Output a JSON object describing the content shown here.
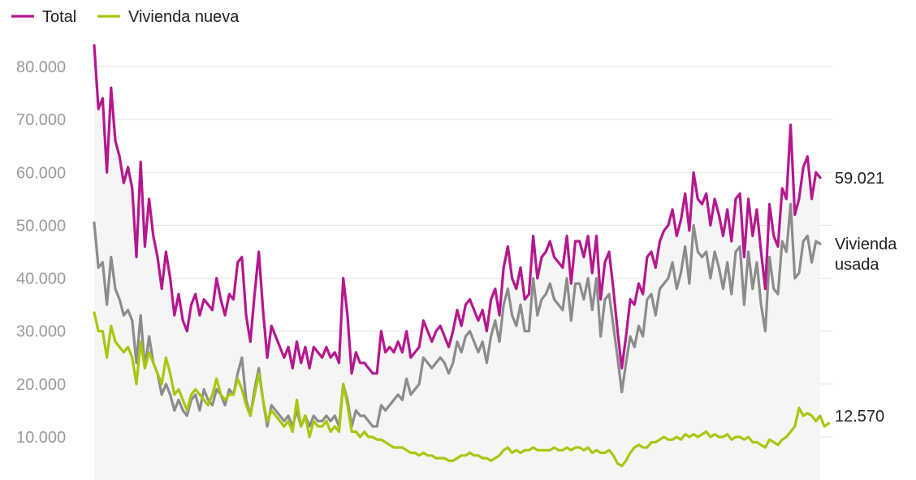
{
  "chart_data": {
    "type": "line",
    "legend": [
      {
        "name": "Total",
        "color": "#b5178f"
      },
      {
        "name": "Vivienda nueva",
        "color": "#a6c80f"
      }
    ],
    "legend_position": "top-left",
    "ylim": [
      0,
      85000
    ],
    "yticks": [
      10000,
      20000,
      30000,
      40000,
      50000,
      60000,
      70000,
      80000
    ],
    "ytick_labels": [
      "10.000",
      "20.000",
      "30.000",
      "40.000",
      "50.000",
      "60.000",
      "70.000",
      "80.000"
    ],
    "grid": true,
    "series": [
      {
        "name": "Total",
        "color": "#b5178f",
        "end_label": "59.021",
        "values": [
          84000,
          72000,
          74000,
          60000,
          76000,
          66000,
          63000,
          58000,
          61000,
          57000,
          44000,
          62000,
          46000,
          55000,
          48000,
          44000,
          38000,
          45000,
          40000,
          33000,
          37000,
          32000,
          30000,
          35000,
          37000,
          33000,
          36000,
          35000,
          34000,
          40000,
          36000,
          33000,
          37000,
          36000,
          43000,
          44000,
          33000,
          28000,
          37000,
          45000,
          34000,
          25000,
          31000,
          29000,
          27000,
          25000,
          27000,
          23000,
          28000,
          24000,
          27000,
          23000,
          27000,
          26000,
          25000,
          27000,
          25000,
          26000,
          24000,
          40000,
          33000,
          22000,
          26000,
          24000,
          24000,
          23000,
          22000,
          22000,
          30000,
          26000,
          27000,
          26000,
          28000,
          26000,
          30000,
          25000,
          26000,
          27000,
          32000,
          30000,
          28000,
          30000,
          31000,
          29000,
          27000,
          30000,
          34000,
          31000,
          35000,
          36000,
          34000,
          32000,
          34000,
          30000,
          36000,
          38000,
          33000,
          42000,
          46000,
          40000,
          38000,
          42000,
          36000,
          37000,
          48000,
          40000,
          44000,
          45000,
          47000,
          44000,
          43000,
          42000,
          48000,
          39000,
          47000,
          47000,
          44000,
          48000,
          41000,
          48000,
          36000,
          43000,
          45000,
          38000,
          30000,
          23000,
          29000,
          36000,
          35000,
          39000,
          37000,
          44000,
          45000,
          42000,
          47000,
          49000,
          50000,
          53000,
          48000,
          51000,
          56000,
          49000,
          60000,
          55000,
          54000,
          56000,
          50000,
          55000,
          52000,
          48000,
          53000,
          47000,
          55000,
          56000,
          44000,
          55000,
          48000,
          53000,
          45000,
          38000,
          54000,
          48000,
          46000,
          57000,
          55000,
          69000,
          52000,
          55000,
          61000,
          63000,
          55000,
          60000,
          59000
        ]
      },
      {
        "name": "Vivienda nueva",
        "color": "#a6c80f",
        "end_label": "12.570",
        "values": [
          33500,
          30000,
          30000,
          25000,
          31000,
          28000,
          27000,
          26000,
          27000,
          25000,
          20000,
          28000,
          23000,
          26000,
          24000,
          22000,
          20000,
          25000,
          22000,
          18000,
          19000,
          17000,
          15000,
          18000,
          19000,
          18000,
          17000,
          16000,
          18000,
          21000,
          18000,
          17000,
          18000,
          18000,
          21000,
          19000,
          16000,
          14000,
          18000,
          22000,
          17000,
          13000,
          15000,
          14000,
          13000,
          12000,
          13000,
          11000,
          17000,
          12000,
          14000,
          10000,
          13000,
          12000,
          12000,
          13000,
          11000,
          12000,
          11000,
          20000,
          16000,
          11000,
          11000,
          10000,
          11000,
          10000,
          10000,
          9500,
          9500,
          9000,
          8500,
          8000,
          8000,
          8000,
          7500,
          7000,
          7000,
          6500,
          7000,
          6500,
          6500,
          6000,
          6000,
          6000,
          5500,
          5500,
          6000,
          6500,
          6500,
          7000,
          6500,
          6500,
          6000,
          6000,
          5500,
          6000,
          6500,
          7500,
          8000,
          7000,
          7500,
          7000,
          7500,
          7500,
          8000,
          7500,
          7500,
          7500,
          7500,
          8000,
          7500,
          7500,
          8000,
          7500,
          8000,
          8000,
          7500,
          8000,
          7000,
          7500,
          7000,
          7000,
          7500,
          6500,
          5000,
          4500,
          5500,
          7000,
          8000,
          8500,
          8000,
          8000,
          9000,
          9000,
          9500,
          10000,
          9500,
          9500,
          10000,
          9500,
          10500,
          10000,
          10500,
          10000,
          10500,
          11000,
          10000,
          10500,
          10000,
          10000,
          10500,
          9500,
          10000,
          10000,
          9500,
          10000,
          9000,
          9000,
          8500,
          8000,
          9500,
          9000,
          8500,
          9500,
          10000,
          11000,
          12000,
          15500,
          14000,
          14500,
          14000,
          13000,
          14000,
          12000,
          12570
        ]
      },
      {
        "name": "Vivienda usada",
        "color": "#8c8c8c",
        "end_label": "Vivienda usada",
        "values": [
          50500,
          42000,
          43000,
          35000,
          44000,
          38000,
          36000,
          33000,
          34000,
          32000,
          24000,
          33000,
          23000,
          29000,
          24000,
          22000,
          18000,
          20000,
          18000,
          15000,
          17000,
          15000,
          14000,
          17000,
          18000,
          15000,
          19000,
          17000,
          16000,
          19000,
          18000,
          16000,
          19000,
          18000,
          22000,
          25000,
          17000,
          14000,
          19000,
          23000,
          17000,
          12000,
          16000,
          15000,
          14000,
          13000,
          14000,
          12000,
          15000,
          12000,
          14000,
          12000,
          14000,
          13000,
          13000,
          14000,
          13000,
          14000,
          12000,
          20000,
          17000,
          12000,
          15000,
          14000,
          14000,
          13000,
          12000,
          12000,
          16000,
          15000,
          16000,
          17000,
          18000,
          17000,
          21000,
          18000,
          19000,
          20000,
          25000,
          24000,
          23000,
          24000,
          25000,
          24000,
          22000,
          24000,
          28000,
          26000,
          29000,
          30000,
          28000,
          26000,
          28000,
          24000,
          29000,
          32000,
          28000,
          35000,
          38000,
          33000,
          31000,
          35000,
          30000,
          30000,
          40000,
          33000,
          36000,
          37000,
          39000,
          36000,
          35000,
          34000,
          40000,
          32000,
          39000,
          39000,
          36000,
          40000,
          34000,
          40000,
          29000,
          36000,
          37000,
          31000,
          25000,
          18500,
          24000,
          29000,
          27000,
          31000,
          29000,
          36000,
          37000,
          33000,
          38000,
          39000,
          40000,
          43000,
          38000,
          41000,
          46000,
          39000,
          50000,
          45000,
          44000,
          45000,
          40000,
          45000,
          42000,
          38000,
          43000,
          37000,
          45000,
          46000,
          35000,
          45000,
          38000,
          43000,
          35000,
          30000,
          44000,
          38000,
          37000,
          47000,
          45000,
          54000,
          40000,
          41000,
          47000,
          48000,
          43000,
          47000,
          46500
        ]
      }
    ]
  }
}
